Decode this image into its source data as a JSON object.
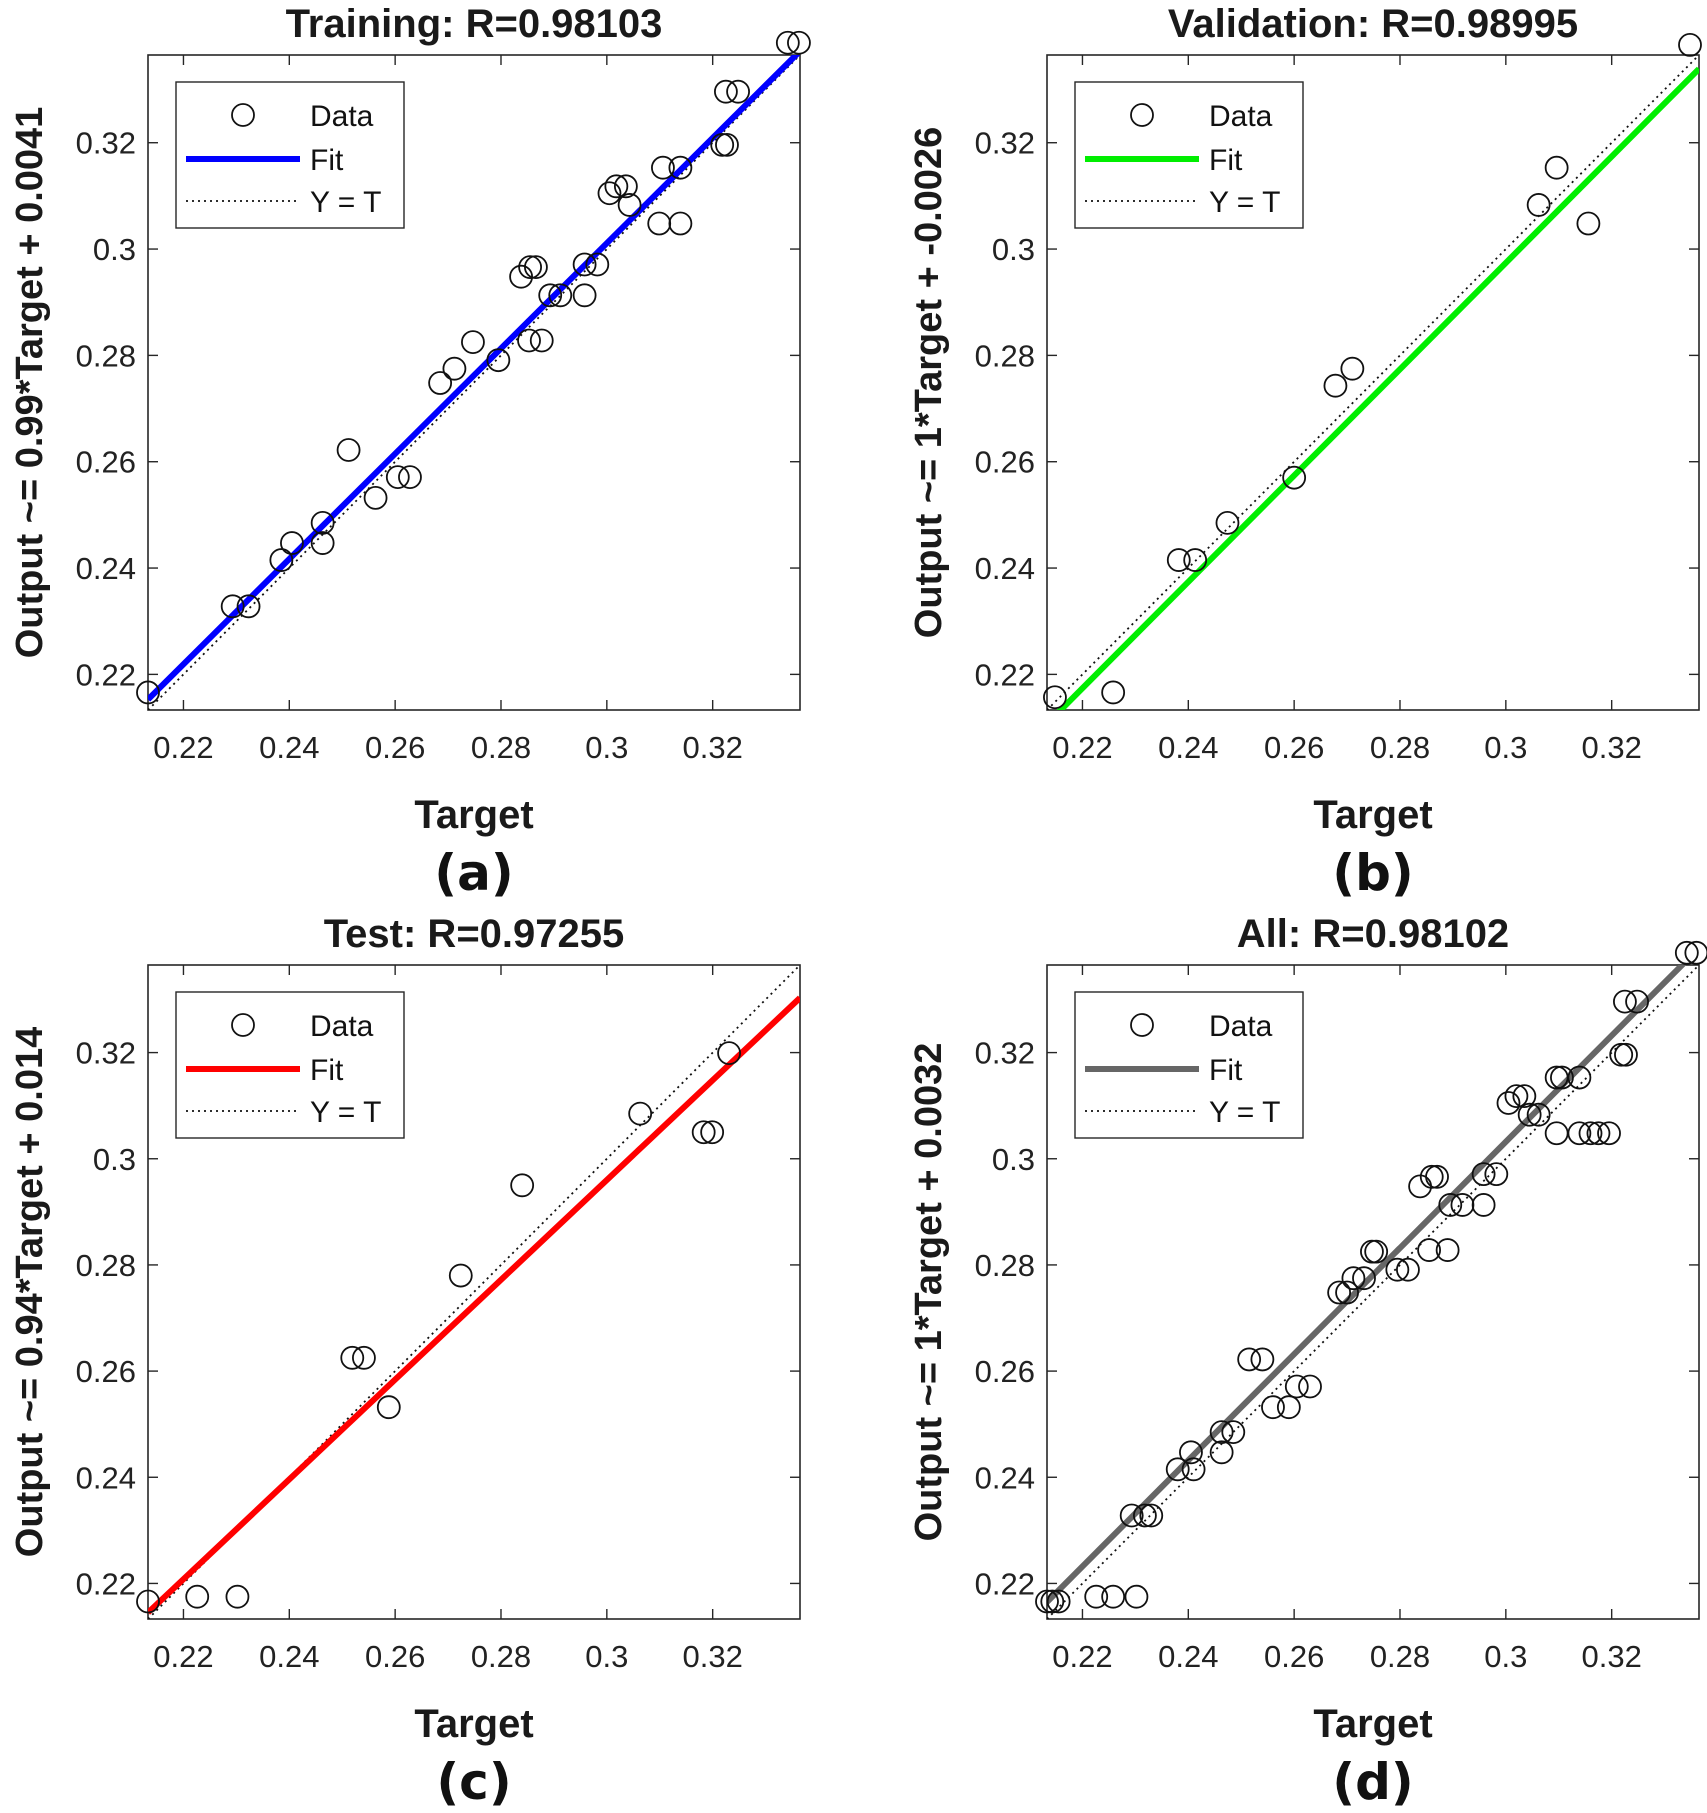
{
  "chart_data": [
    {
      "type": "scatter",
      "panel": "(a)",
      "title": "Training: R=0.98103",
      "xlabel": "Target",
      "ylabel": "Output ~= 0.99*Target + 0.0041",
      "fit_color": "#0000ff",
      "fit": {
        "slope": 0.99,
        "intercept": 0.0041
      },
      "legend": [
        "Data",
        "Fit",
        "Y = T"
      ],
      "xlim": [
        0.2133,
        0.3365
      ],
      "ylim": [
        0.2133,
        0.3365
      ],
      "xticks": [
        0.22,
        0.24,
        0.26,
        0.28,
        0.3,
        0.32
      ],
      "yticks": [
        0.22,
        0.24,
        0.26,
        0.28,
        0.3,
        0.32
      ],
      "tick_labels": [
        "0.22",
        "0.24",
        "0.26",
        "0.28",
        "0.3",
        "0.32"
      ],
      "points": [
        [
          0.2133,
          0.2166
        ],
        [
          0.2293,
          0.2328
        ],
        [
          0.2323,
          0.2328
        ],
        [
          0.2385,
          0.2415
        ],
        [
          0.2405,
          0.2447
        ],
        [
          0.2463,
          0.2447
        ],
        [
          0.2463,
          0.2485
        ],
        [
          0.2512,
          0.2622
        ],
        [
          0.2563,
          0.2532
        ],
        [
          0.2605,
          0.2571
        ],
        [
          0.2628,
          0.2571
        ],
        [
          0.2685,
          0.2748
        ],
        [
          0.2712,
          0.2775
        ],
        [
          0.2747,
          0.2825
        ],
        [
          0.2795,
          0.2791
        ],
        [
          0.2838,
          0.2948
        ],
        [
          0.2855,
          0.2966
        ],
        [
          0.2866,
          0.2966
        ],
        [
          0.2853,
          0.2828
        ],
        [
          0.2877,
          0.2828
        ],
        [
          0.2893,
          0.2913
        ],
        [
          0.2912,
          0.2913
        ],
        [
          0.2958,
          0.2913
        ],
        [
          0.2958,
          0.2971
        ],
        [
          0.2982,
          0.2971
        ],
        [
          0.3005,
          0.3105
        ],
        [
          0.3018,
          0.3118
        ],
        [
          0.3036,
          0.3118
        ],
        [
          0.3043,
          0.3083
        ],
        [
          0.3099,
          0.3048
        ],
        [
          0.3106,
          0.3153
        ],
        [
          0.3139,
          0.3153
        ],
        [
          0.3139,
          0.3048
        ],
        [
          0.3218,
          0.3196
        ],
        [
          0.3227,
          0.3196
        ],
        [
          0.3225,
          0.3296
        ],
        [
          0.3248,
          0.3296
        ],
        [
          0.3342,
          0.3388
        ],
        [
          0.3363,
          0.3388
        ]
      ]
    },
    {
      "type": "scatter",
      "panel": "(b)",
      "title": "Validation: R=0.98995",
      "xlabel": "Target",
      "ylabel": "Output ~= 1*Target + -0.0026",
      "fit_color": "#00ee00",
      "fit": {
        "slope": 1.0,
        "intercept": -0.0026
      },
      "legend": [
        "Data",
        "Fit",
        "Y = T"
      ],
      "xlim": [
        0.2133,
        0.3365
      ],
      "ylim": [
        0.2133,
        0.3365
      ],
      "xticks": [
        0.22,
        0.24,
        0.26,
        0.28,
        0.3,
        0.32
      ],
      "yticks": [
        0.22,
        0.24,
        0.26,
        0.28,
        0.3,
        0.32
      ],
      "tick_labels": [
        "0.22",
        "0.24",
        "0.26",
        "0.28",
        "0.3",
        "0.32"
      ],
      "points": [
        [
          0.2148,
          0.2157
        ],
        [
          0.2258,
          0.2166
        ],
        [
          0.2382,
          0.2415
        ],
        [
          0.2413,
          0.2415
        ],
        [
          0.2474,
          0.2485
        ],
        [
          0.26,
          0.257
        ],
        [
          0.2678,
          0.2743
        ],
        [
          0.271,
          0.2775
        ],
        [
          0.3062,
          0.3083
        ],
        [
          0.3096,
          0.3153
        ],
        [
          0.3156,
          0.3048
        ],
        [
          0.3348,
          0.3384
        ]
      ]
    },
    {
      "type": "scatter",
      "panel": "(c)",
      "title": "Test: R=0.97255",
      "xlabel": "Target",
      "ylabel": "Output ~= 0.94*Target + 0.014",
      "fit_color": "#ff0000",
      "fit": {
        "slope": 0.94,
        "intercept": 0.014
      },
      "legend": [
        "Data",
        "Fit",
        "Y = T"
      ],
      "xlim": [
        0.2133,
        0.3365
      ],
      "ylim": [
        0.2133,
        0.3365
      ],
      "xticks": [
        0.22,
        0.24,
        0.26,
        0.28,
        0.3,
        0.32
      ],
      "yticks": [
        0.22,
        0.24,
        0.26,
        0.28,
        0.3,
        0.32
      ],
      "tick_labels": [
        "0.22",
        "0.24",
        "0.26",
        "0.28",
        "0.3",
        "0.32"
      ],
      "points": [
        [
          0.2133,
          0.2166
        ],
        [
          0.2226,
          0.2175
        ],
        [
          0.2302,
          0.2175
        ],
        [
          0.2519,
          0.2625
        ],
        [
          0.2541,
          0.2625
        ],
        [
          0.2588,
          0.2532
        ],
        [
          0.2724,
          0.278
        ],
        [
          0.284,
          0.295
        ],
        [
          0.3063,
          0.3085
        ],
        [
          0.3183,
          0.305
        ],
        [
          0.3199,
          0.305
        ],
        [
          0.3231,
          0.3199
        ]
      ]
    },
    {
      "type": "scatter",
      "panel": "(d)",
      "title": "All: R=0.98102",
      "xlabel": "Target",
      "ylabel": "Output ~= 1*Target + 0.0032",
      "fit_color": "#666666",
      "fit": {
        "slope": 1.0,
        "intercept": 0.0032
      },
      "legend": [
        "Data",
        "Fit",
        "Y = T"
      ],
      "xlim": [
        0.2133,
        0.3365
      ],
      "ylim": [
        0.2133,
        0.3365
      ],
      "xticks": [
        0.22,
        0.24,
        0.26,
        0.28,
        0.3,
        0.32
      ],
      "yticks": [
        0.22,
        0.24,
        0.26,
        0.28,
        0.3,
        0.32
      ],
      "tick_labels": [
        "0.22",
        "0.24",
        "0.26",
        "0.28",
        "0.3",
        "0.32"
      ],
      "points": [
        [
          0.2133,
          0.2166
        ],
        [
          0.2143,
          0.2166
        ],
        [
          0.2155,
          0.2166
        ],
        [
          0.2226,
          0.2175
        ],
        [
          0.2258,
          0.2175
        ],
        [
          0.2302,
          0.2175
        ],
        [
          0.2293,
          0.2328
        ],
        [
          0.2318,
          0.2328
        ],
        [
          0.233,
          0.2328
        ],
        [
          0.238,
          0.2415
        ],
        [
          0.241,
          0.2415
        ],
        [
          0.2405,
          0.2447
        ],
        [
          0.2463,
          0.2447
        ],
        [
          0.2463,
          0.2485
        ],
        [
          0.2485,
          0.2485
        ],
        [
          0.2515,
          0.2622
        ],
        [
          0.254,
          0.2622
        ],
        [
          0.256,
          0.2532
        ],
        [
          0.259,
          0.2532
        ],
        [
          0.2605,
          0.2571
        ],
        [
          0.263,
          0.2571
        ],
        [
          0.2685,
          0.2748
        ],
        [
          0.27,
          0.2748
        ],
        [
          0.2712,
          0.2775
        ],
        [
          0.2732,
          0.2775
        ],
        [
          0.2747,
          0.2825
        ],
        [
          0.2755,
          0.2825
        ],
        [
          0.2795,
          0.2791
        ],
        [
          0.2815,
          0.2791
        ],
        [
          0.2838,
          0.2948
        ],
        [
          0.286,
          0.2966
        ],
        [
          0.287,
          0.2966
        ],
        [
          0.2855,
          0.2828
        ],
        [
          0.289,
          0.2828
        ],
        [
          0.2895,
          0.2913
        ],
        [
          0.2918,
          0.2913
        ],
        [
          0.2958,
          0.2913
        ],
        [
          0.2958,
          0.2971
        ],
        [
          0.2982,
          0.2971
        ],
        [
          0.3005,
          0.3105
        ],
        [
          0.302,
          0.3118
        ],
        [
          0.3035,
          0.3118
        ],
        [
          0.3045,
          0.3083
        ],
        [
          0.3062,
          0.3083
        ],
        [
          0.3096,
          0.3153
        ],
        [
          0.3106,
          0.3153
        ],
        [
          0.3139,
          0.3153
        ],
        [
          0.3096,
          0.3048
        ],
        [
          0.3139,
          0.3048
        ],
        [
          0.316,
          0.3048
        ],
        [
          0.3175,
          0.3048
        ],
        [
          0.3195,
          0.3048
        ],
        [
          0.3218,
          0.3196
        ],
        [
          0.3227,
          0.3196
        ],
        [
          0.3225,
          0.3296
        ],
        [
          0.3248,
          0.3296
        ],
        [
          0.3342,
          0.3388
        ],
        [
          0.336,
          0.3388
        ]
      ]
    }
  ]
}
